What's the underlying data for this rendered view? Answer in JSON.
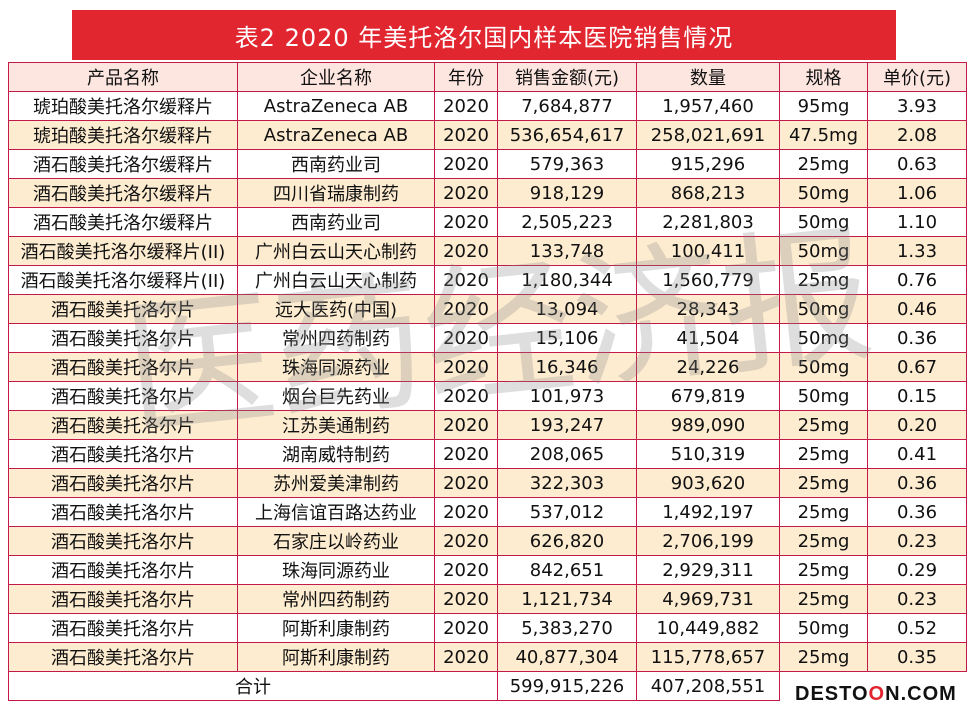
{
  "title": "表2   2020 年美托洛尔国内样本医院销售情况",
  "columns": [
    "产品名称",
    "企业名称",
    "年份",
    "销售金额(元)",
    "数量",
    "规格",
    "单价(元)"
  ],
  "rows": [
    [
      "琥珀酸美托洛尔缓释片",
      "AstraZeneca AB",
      "2020",
      "7,684,877",
      "1,957,460",
      "95mg",
      "3.93"
    ],
    [
      "琥珀酸美托洛尔缓释片",
      "AstraZeneca AB",
      "2020",
      "536,654,617",
      "258,021,691",
      "47.5mg",
      "2.08"
    ],
    [
      "酒石酸美托洛尔缓释片",
      "西南药业司",
      "2020",
      "579,363",
      "915,296",
      "25mg",
      "0.63"
    ],
    [
      "酒石酸美托洛尔缓释片",
      "四川省瑞康制药",
      "2020",
      "918,129",
      "868,213",
      "50mg",
      "1.06"
    ],
    [
      "酒石酸美托洛尔缓释片",
      "西南药业司",
      "2020",
      "2,505,223",
      "2,281,803",
      "50mg",
      "1.10"
    ],
    [
      "酒石酸美托洛尔缓释片(II)",
      "广州白云山天心制药",
      "2020",
      "133,748",
      "100,411",
      "50mg",
      "1.33"
    ],
    [
      "酒石酸美托洛尔缓释片(II)",
      "广州白云山天心制药",
      "2020",
      "1,180,344",
      "1,560,779",
      "25mg",
      "0.76"
    ],
    [
      "酒石酸美托洛尔片",
      "远大医药(中国)",
      "2020",
      "13,094",
      "28,343",
      "50mg",
      "0.46"
    ],
    [
      "酒石酸美托洛尔片",
      "常州四药制药",
      "2020",
      "15,106",
      "41,504",
      "50mg",
      "0.36"
    ],
    [
      "酒石酸美托洛尔片",
      "珠海同源药业",
      "2020",
      "16,346",
      "24,226",
      "50mg",
      "0.67"
    ],
    [
      "酒石酸美托洛尔片",
      "烟台巨先药业",
      "2020",
      "101,973",
      "679,819",
      "50mg",
      "0.15"
    ],
    [
      "酒石酸美托洛尔片",
      "江苏美通制药",
      "2020",
      "193,247",
      "989,090",
      "25mg",
      "0.20"
    ],
    [
      "酒石酸美托洛尔片",
      "湖南威特制药",
      "2020",
      "208,065",
      "510,319",
      "25mg",
      "0.41"
    ],
    [
      "酒石酸美托洛尔片",
      "苏州爱美津制药",
      "2020",
      "322,303",
      "903,620",
      "25mg",
      "0.36"
    ],
    [
      "酒石酸美托洛尔片",
      "上海信谊百路达药业",
      "2020",
      "537,012",
      "1,492,197",
      "25mg",
      "0.36"
    ],
    [
      "酒石酸美托洛尔片",
      "石家庄以岭药业",
      "2020",
      "626,820",
      "2,706,199",
      "25mg",
      "0.23"
    ],
    [
      "酒石酸美托洛尔片",
      "珠海同源药业",
      "2020",
      "842,651",
      "2,929,311",
      "25mg",
      "0.29"
    ],
    [
      "酒石酸美托洛尔片",
      "常州四药制药",
      "2020",
      "1,121,734",
      "4,969,731",
      "25mg",
      "0.23"
    ],
    [
      "酒石酸美托洛尔片",
      "阿斯利康制药",
      "2020",
      "5,383,270",
      "10,449,882",
      "50mg",
      "0.52"
    ],
    [
      "酒石酸美托洛尔片",
      "阿斯利康制药",
      "2020",
      "40,877,304",
      "115,778,657",
      "25mg",
      "0.35"
    ]
  ],
  "total": {
    "label": "合计",
    "amount": "599,915,226",
    "quantity": "407,208,551"
  },
  "watermark": "医药经济报",
  "logo": {
    "left": "DESTO",
    "o": "O",
    "n": "N",
    "right": ".COM"
  },
  "colors": {
    "title_bg": "#e2262f",
    "border": "#c31a4a",
    "odd_row": "#fdecd0",
    "header_row": "#fde6e0"
  }
}
